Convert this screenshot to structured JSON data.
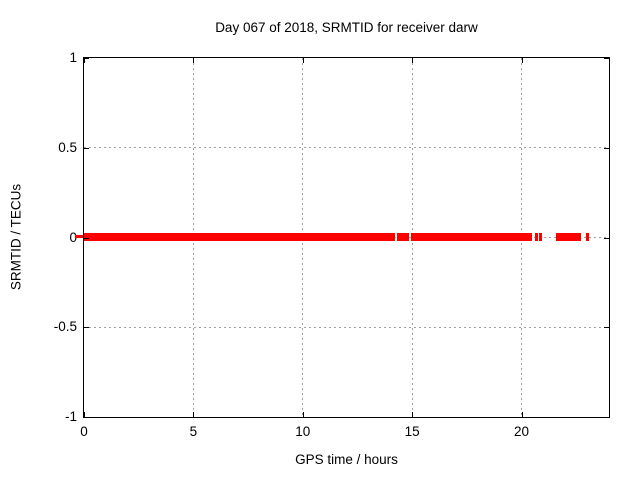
{
  "chart_data": {
    "type": "scatter",
    "title": "Day 067 of 2018, SRMTID for receiver darw",
    "xlabel": "GPS time / hours",
    "ylabel": "SRMTID / TECUs",
    "xlim": [
      0,
      24
    ],
    "ylim": [
      -1,
      1
    ],
    "xticks": [
      0,
      5,
      10,
      15,
      20
    ],
    "yticks": [
      1,
      0.5,
      0,
      -0.5,
      -1
    ],
    "grid": true,
    "legend": false,
    "grid_color": "#a0a0a0",
    "axis_color": "#000000",
    "background_color": "#ffffff",
    "series": [
      {
        "name": "SRMTID",
        "color": "#ff0000",
        "marker": "point-band",
        "y_value": 0,
        "y_band": [
          -0.02,
          0.02
        ],
        "x_segments_hours": [
          [
            0.0,
            14.2
          ],
          [
            14.33,
            14.84
          ],
          [
            14.97,
            20.5
          ],
          [
            20.6,
            20.74
          ],
          [
            20.81,
            20.92
          ],
          [
            21.57,
            22.72
          ],
          [
            22.95,
            23.1
          ]
        ]
      }
    ]
  }
}
